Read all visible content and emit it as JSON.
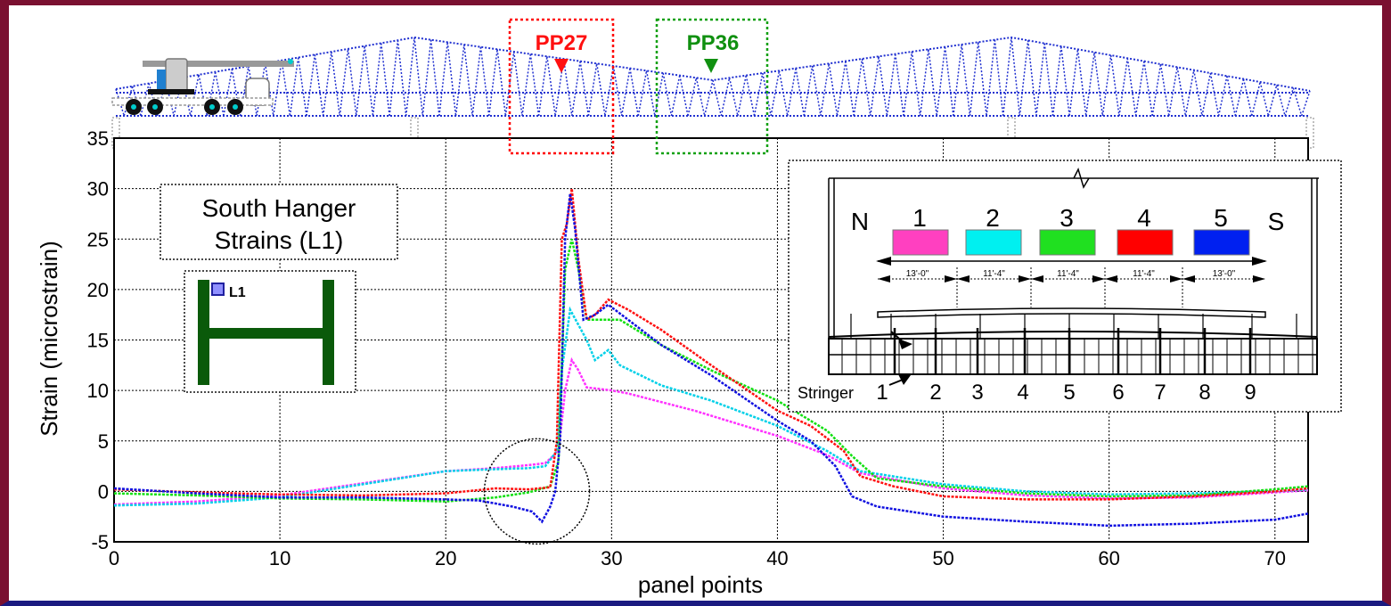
{
  "chart_data": {
    "type": "line",
    "title": "South Hanger Strains (L1)",
    "title_lines": [
      "South Hanger",
      "Strains (L1)"
    ],
    "xlabel": "panel points",
    "ylabel": "Strain (microstrain)",
    "xlim": [
      0,
      72
    ],
    "ylim": [
      -5,
      35
    ],
    "xticks": [
      0,
      10,
      20,
      30,
      40,
      50,
      60,
      70
    ],
    "yticks": [
      -5,
      0,
      5,
      10,
      15,
      20,
      25,
      30,
      35
    ],
    "grid": true,
    "series": [
      {
        "key": "magenta",
        "color": "#ff30ff",
        "points": [
          [
            0,
            -1.3
          ],
          [
            5,
            -1.0
          ],
          [
            10,
            -0.4
          ],
          [
            15,
            0.8
          ],
          [
            20,
            2.0
          ],
          [
            23,
            2.3
          ],
          [
            25,
            2.6
          ],
          [
            26,
            2.8
          ],
          [
            26.8,
            4.0
          ],
          [
            27.2,
            10.0
          ],
          [
            27.6,
            13.0
          ],
          [
            28,
            12.0
          ],
          [
            28.5,
            10.3
          ],
          [
            30,
            10.0
          ],
          [
            31,
            9.7
          ],
          [
            35,
            8.0
          ],
          [
            40,
            5.5
          ],
          [
            43,
            3.6
          ],
          [
            45,
            1.8
          ],
          [
            50,
            0.3
          ],
          [
            55,
            -0.4
          ],
          [
            60,
            -0.7
          ],
          [
            65,
            -0.6
          ],
          [
            70,
            -0.1
          ],
          [
            72,
            0.1
          ]
        ]
      },
      {
        "key": "cyan",
        "color": "#00d0e8",
        "points": [
          [
            0,
            -1.4
          ],
          [
            5,
            -1.2
          ],
          [
            10,
            -0.6
          ],
          [
            15,
            0.7
          ],
          [
            20,
            2.0
          ],
          [
            23,
            2.2
          ],
          [
            25,
            2.3
          ],
          [
            26,
            2.5
          ],
          [
            26.7,
            4.0
          ],
          [
            27,
            12.0
          ],
          [
            27.5,
            18.0
          ],
          [
            28,
            16.5
          ],
          [
            28.5,
            15.0
          ],
          [
            29,
            13.0
          ],
          [
            29.8,
            14.0
          ],
          [
            30.5,
            12.5
          ],
          [
            33,
            10.5
          ],
          [
            36,
            9.0
          ],
          [
            40,
            6.5
          ],
          [
            43,
            4.0
          ],
          [
            45,
            2.0
          ],
          [
            50,
            0.7
          ],
          [
            55,
            0.0
          ],
          [
            60,
            -0.3
          ],
          [
            65,
            -0.2
          ],
          [
            70,
            0.0
          ],
          [
            72,
            0.2
          ]
        ]
      },
      {
        "key": "green",
        "color": "#10e010",
        "points": [
          [
            0,
            -0.2
          ],
          [
            5,
            -0.4
          ],
          [
            10,
            -0.7
          ],
          [
            15,
            -0.8
          ],
          [
            20,
            -1.0
          ],
          [
            23,
            -0.6
          ],
          [
            25,
            -0.1
          ],
          [
            26.3,
            0.5
          ],
          [
            26.8,
            3.0
          ],
          [
            27.2,
            22.0
          ],
          [
            27.6,
            25.0
          ],
          [
            28,
            22.0
          ],
          [
            28.5,
            17.0
          ],
          [
            29.5,
            17.0
          ],
          [
            30.5,
            17.0
          ],
          [
            33,
            14.5
          ],
          [
            36,
            12.0
          ],
          [
            40,
            9.0
          ],
          [
            43,
            6.0
          ],
          [
            44.5,
            3.5
          ],
          [
            46,
            1.3
          ],
          [
            50,
            0.5
          ],
          [
            55,
            -0.2
          ],
          [
            60,
            -0.5
          ],
          [
            65,
            -0.4
          ],
          [
            70,
            0.2
          ],
          [
            72,
            0.5
          ]
        ]
      },
      {
        "key": "red",
        "color": "#ff1010",
        "points": [
          [
            0,
            0.2
          ],
          [
            5,
            -0.1
          ],
          [
            10,
            -0.3
          ],
          [
            15,
            -0.4
          ],
          [
            20,
            -0.2
          ],
          [
            23,
            0.3
          ],
          [
            25,
            0.2
          ],
          [
            26.3,
            0.4
          ],
          [
            26.7,
            5.0
          ],
          [
            27,
            25.0
          ],
          [
            27.3,
            26.5
          ],
          [
            27.6,
            30.0
          ],
          [
            28,
            23.0
          ],
          [
            28.5,
            17.0
          ],
          [
            29,
            17.5
          ],
          [
            29.8,
            19.0
          ],
          [
            31,
            18.0
          ],
          [
            33,
            16.0
          ],
          [
            36,
            12.5
          ],
          [
            40,
            8.0
          ],
          [
            42,
            6.5
          ],
          [
            44,
            4.0
          ],
          [
            45,
            1.5
          ],
          [
            47,
            0.5
          ],
          [
            50,
            -0.5
          ],
          [
            55,
            -0.8
          ],
          [
            60,
            -0.8
          ],
          [
            65,
            -0.5
          ],
          [
            70,
            0.0
          ],
          [
            72,
            0.3
          ]
        ]
      },
      {
        "key": "blue",
        "color": "#1010e0",
        "points": [
          [
            0,
            0.3
          ],
          [
            5,
            -0.2
          ],
          [
            10,
            -0.6
          ],
          [
            15,
            -0.6
          ],
          [
            20,
            -0.8
          ],
          [
            22,
            -0.9
          ],
          [
            24,
            -1.5
          ],
          [
            25.2,
            -2.0
          ],
          [
            25.8,
            -3.0
          ],
          [
            26.3,
            -1.5
          ],
          [
            26.6,
            0.0
          ],
          [
            26.9,
            5.0
          ],
          [
            27.2,
            25.0
          ],
          [
            27.5,
            29.5
          ],
          [
            27.8,
            26.0
          ],
          [
            28.3,
            17.0
          ],
          [
            29,
            17.5
          ],
          [
            29.8,
            18.5
          ],
          [
            31,
            17.0
          ],
          [
            33,
            14.5
          ],
          [
            36,
            11.5
          ],
          [
            40,
            7.0
          ],
          [
            42,
            5.0
          ],
          [
            43.5,
            2.5
          ],
          [
            44.5,
            -0.5
          ],
          [
            46,
            -1.5
          ],
          [
            50,
            -2.5
          ],
          [
            55,
            -3.0
          ],
          [
            60,
            -3.4
          ],
          [
            65,
            -3.2
          ],
          [
            70,
            -2.8
          ],
          [
            72,
            -2.2
          ]
        ]
      }
    ],
    "annotations": [
      "PP27",
      "PP36"
    ],
    "gauge_label": "L1"
  },
  "inset": {
    "north": "N",
    "south": "S",
    "lanes": [
      {
        "label": "1",
        "color": "#ff40c0"
      },
      {
        "label": "2",
        "color": "#00f0f0"
      },
      {
        "label": "3",
        "color": "#20e020"
      },
      {
        "label": "4",
        "color": "#ff0000"
      },
      {
        "label": "5",
        "color": "#0020f0"
      }
    ],
    "spacings": [
      "13'-0\"",
      "11'-4\"",
      "11'-4\"",
      "11'-4\"",
      "13'-0\""
    ],
    "stringer_label": "Stringer",
    "stringers": [
      "1",
      "2",
      "3",
      "4",
      "5",
      "6",
      "7",
      "8",
      "9"
    ]
  }
}
